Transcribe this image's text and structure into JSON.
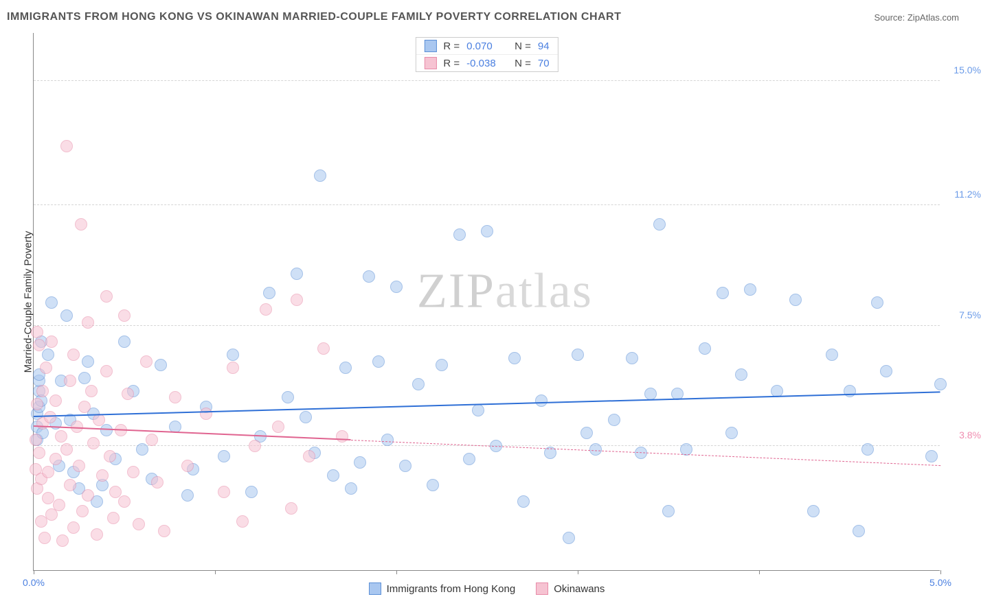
{
  "title": "IMMIGRANTS FROM HONG KONG VS OKINAWAN MARRIED-COUPLE FAMILY POVERTY CORRELATION CHART",
  "source": "Source: ZipAtlas.com",
  "watermark": "ZIPatlas",
  "ylabel": "Married-Couple Family Poverty",
  "chart": {
    "type": "scatter",
    "background_color": "#ffffff",
    "grid_color": "#d5d5d5",
    "xlim": [
      0.0,
      5.0
    ],
    "ylim": [
      0.0,
      16.5
    ],
    "xticks": [
      0.0,
      1.0,
      2.0,
      3.0,
      4.0,
      5.0
    ],
    "xtick_labels": {
      "0": "0.0%",
      "5": "5.0%"
    },
    "xtick_label_color": "#4a7fe0",
    "yticks": [
      {
        "value": 3.8,
        "label": "3.8%",
        "color": "#f08db0"
      },
      {
        "value": 7.5,
        "label": "7.5%",
        "color": "#6b9be8"
      },
      {
        "value": 11.2,
        "label": "11.2%",
        "color": "#6b9be8"
      },
      {
        "value": 15.0,
        "label": "15.0%",
        "color": "#6b9be8"
      }
    ],
    "marker_radius": 9,
    "marker_opacity": 0.55,
    "series": [
      {
        "id": "hk",
        "label": "Immigrants from Hong Kong",
        "fill_color": "#a9c7f0",
        "stroke_color": "#5b8fd6",
        "line_color": "#2e6fd6",
        "R": "0.070",
        "N": "94",
        "trend": {
          "x0": 0.0,
          "y0": 4.7,
          "x1": 5.0,
          "y1": 5.45,
          "solid_until": 5.0
        },
        "points": [
          [
            0.02,
            4.8
          ],
          [
            0.02,
            4.4
          ],
          [
            0.02,
            4.0
          ],
          [
            0.03,
            5.5
          ],
          [
            0.03,
            5.0
          ],
          [
            0.03,
            5.8
          ],
          [
            0.03,
            6.0
          ],
          [
            0.04,
            7.0
          ],
          [
            0.04,
            5.2
          ],
          [
            0.05,
            4.2
          ],
          [
            0.1,
            8.2
          ],
          [
            0.12,
            4.5
          ],
          [
            0.14,
            3.2
          ],
          [
            0.15,
            5.8
          ],
          [
            0.18,
            7.8
          ],
          [
            0.2,
            4.6
          ],
          [
            0.22,
            3.0
          ],
          [
            0.25,
            2.5
          ],
          [
            0.28,
            5.9
          ],
          [
            0.08,
            6.6
          ],
          [
            0.3,
            6.4
          ],
          [
            0.33,
            4.8
          ],
          [
            0.35,
            2.1
          ],
          [
            0.38,
            2.6
          ],
          [
            0.4,
            4.3
          ],
          [
            0.45,
            3.4
          ],
          [
            0.5,
            7.0
          ],
          [
            0.55,
            5.5
          ],
          [
            0.6,
            3.7
          ],
          [
            0.65,
            2.8
          ],
          [
            0.7,
            6.3
          ],
          [
            0.78,
            4.4
          ],
          [
            0.85,
            2.3
          ],
          [
            0.88,
            3.1
          ],
          [
            0.95,
            5.0
          ],
          [
            1.05,
            3.5
          ],
          [
            1.1,
            6.6
          ],
          [
            1.2,
            2.4
          ],
          [
            1.25,
            4.1
          ],
          [
            1.3,
            8.5
          ],
          [
            1.4,
            5.3
          ],
          [
            1.45,
            9.1
          ],
          [
            1.5,
            4.7
          ],
          [
            1.55,
            3.6
          ],
          [
            1.58,
            12.1
          ],
          [
            1.65,
            2.9
          ],
          [
            1.72,
            6.2
          ],
          [
            1.8,
            3.3
          ],
          [
            1.85,
            9.0
          ],
          [
            1.9,
            6.4
          ],
          [
            1.95,
            4.0
          ],
          [
            1.75,
            2.5
          ],
          [
            2.0,
            8.7
          ],
          [
            2.05,
            3.2
          ],
          [
            2.12,
            5.7
          ],
          [
            2.2,
            2.6
          ],
          [
            2.25,
            6.3
          ],
          [
            2.35,
            10.3
          ],
          [
            2.4,
            3.4
          ],
          [
            2.45,
            4.9
          ],
          [
            2.5,
            10.4
          ],
          [
            2.55,
            3.8
          ],
          [
            2.65,
            6.5
          ],
          [
            2.7,
            2.1
          ],
          [
            2.8,
            5.2
          ],
          [
            2.85,
            3.6
          ],
          [
            2.95,
            1.0
          ],
          [
            3.0,
            6.6
          ],
          [
            3.05,
            4.2
          ],
          [
            3.1,
            3.7
          ],
          [
            3.2,
            4.6
          ],
          [
            3.3,
            6.5
          ],
          [
            3.35,
            3.6
          ],
          [
            3.4,
            5.4
          ],
          [
            3.45,
            10.6
          ],
          [
            3.5,
            1.8
          ],
          [
            3.55,
            5.4
          ],
          [
            3.6,
            3.7
          ],
          [
            3.7,
            6.8
          ],
          [
            3.8,
            8.5
          ],
          [
            3.85,
            4.2
          ],
          [
            3.9,
            6.0
          ],
          [
            3.95,
            8.6
          ],
          [
            4.1,
            5.5
          ],
          [
            4.2,
            8.3
          ],
          [
            4.3,
            1.8
          ],
          [
            4.4,
            6.6
          ],
          [
            4.5,
            5.5
          ],
          [
            4.55,
            1.2
          ],
          [
            4.6,
            3.7
          ],
          [
            4.65,
            8.2
          ],
          [
            4.7,
            6.1
          ],
          [
            4.95,
            3.5
          ],
          [
            5.0,
            5.7
          ]
        ]
      },
      {
        "id": "ok",
        "label": "Okinawans",
        "fill_color": "#f6c3d2",
        "stroke_color": "#e88ba8",
        "line_color": "#e06490",
        "R": "-0.038",
        "N": "70",
        "trend": {
          "x0": 0.0,
          "y0": 4.4,
          "x1": 5.0,
          "y1": 3.2,
          "solid_until": 1.75
        },
        "points": [
          [
            0.01,
            4.0
          ],
          [
            0.01,
            3.1
          ],
          [
            0.02,
            2.5
          ],
          [
            0.02,
            7.3
          ],
          [
            0.02,
            5.1
          ],
          [
            0.03,
            6.9
          ],
          [
            0.03,
            3.6
          ],
          [
            0.04,
            1.5
          ],
          [
            0.04,
            2.8
          ],
          [
            0.05,
            5.5
          ],
          [
            0.05,
            4.5
          ],
          [
            0.06,
            1.0
          ],
          [
            0.07,
            6.2
          ],
          [
            0.08,
            3.0
          ],
          [
            0.08,
            2.2
          ],
          [
            0.09,
            4.7
          ],
          [
            0.1,
            1.7
          ],
          [
            0.1,
            7.0
          ],
          [
            0.12,
            3.4
          ],
          [
            0.12,
            5.2
          ],
          [
            0.14,
            2.0
          ],
          [
            0.15,
            4.1
          ],
          [
            0.16,
            0.9
          ],
          [
            0.18,
            3.7
          ],
          [
            0.18,
            13.0
          ],
          [
            0.2,
            5.8
          ],
          [
            0.2,
            2.6
          ],
          [
            0.22,
            1.3
          ],
          [
            0.22,
            6.6
          ],
          [
            0.24,
            4.4
          ],
          [
            0.25,
            3.2
          ],
          [
            0.26,
            10.6
          ],
          [
            0.27,
            1.8
          ],
          [
            0.28,
            5.0
          ],
          [
            0.3,
            2.3
          ],
          [
            0.3,
            7.6
          ],
          [
            0.32,
            5.5
          ],
          [
            0.33,
            3.9
          ],
          [
            0.35,
            1.1
          ],
          [
            0.36,
            4.6
          ],
          [
            0.38,
            2.9
          ],
          [
            0.4,
            8.4
          ],
          [
            0.4,
            6.1
          ],
          [
            0.42,
            3.5
          ],
          [
            0.44,
            1.6
          ],
          [
            0.45,
            2.4
          ],
          [
            0.48,
            4.3
          ],
          [
            0.5,
            7.8
          ],
          [
            0.5,
            2.1
          ],
          [
            0.52,
            5.4
          ],
          [
            0.55,
            3.0
          ],
          [
            0.58,
            1.4
          ],
          [
            0.62,
            6.4
          ],
          [
            0.65,
            4.0
          ],
          [
            0.68,
            2.7
          ],
          [
            0.72,
            1.2
          ],
          [
            0.78,
            5.3
          ],
          [
            0.85,
            3.2
          ],
          [
            0.95,
            4.8
          ],
          [
            1.05,
            2.4
          ],
          [
            1.1,
            6.2
          ],
          [
            1.15,
            1.5
          ],
          [
            1.22,
            3.8
          ],
          [
            1.28,
            8.0
          ],
          [
            1.35,
            4.4
          ],
          [
            1.42,
            1.9
          ],
          [
            1.45,
            8.3
          ],
          [
            1.52,
            3.5
          ],
          [
            1.6,
            6.8
          ],
          [
            1.7,
            4.1
          ]
        ]
      }
    ]
  },
  "stat_value_color": "#4a7fe0",
  "bottom_legend": [
    {
      "label": "Immigrants from Hong Kong",
      "fill": "#a9c7f0",
      "stroke": "#5b8fd6"
    },
    {
      "label": "Okinawans",
      "fill": "#f6c3d2",
      "stroke": "#e88ba8"
    }
  ]
}
